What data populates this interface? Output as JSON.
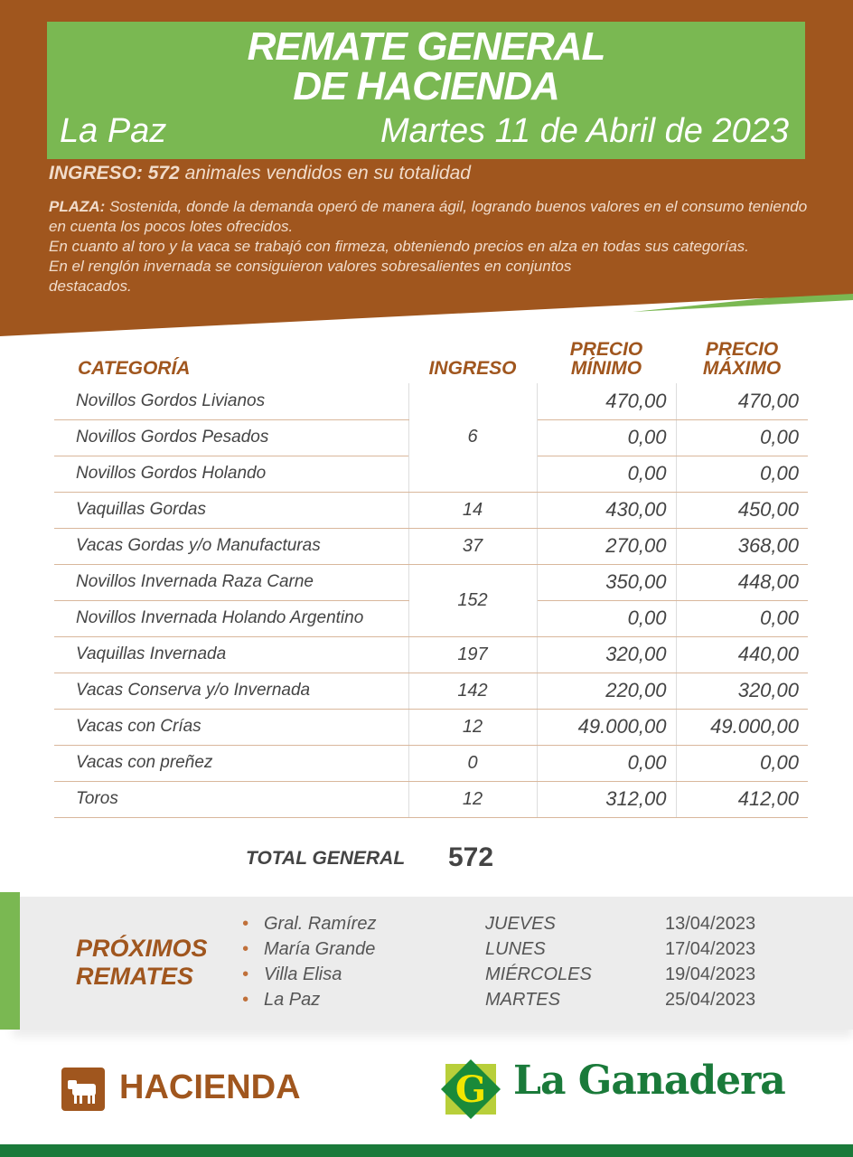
{
  "colors": {
    "brown": "#a0561e",
    "green": "#7ab852",
    "dark_green": "#1a7a3a"
  },
  "header": {
    "title_line1": "REMATE GENERAL",
    "title_line2": "DE HACIENDA",
    "place": "La Paz",
    "date": "Martes 11 de Abril de 2023"
  },
  "ingreso": {
    "label": "INGRESO:",
    "value": "572",
    "text": "animales vendidos en su totalidad"
  },
  "plaza": {
    "label": "PLAZA:",
    "lines": [
      "Sostenida, donde la demanda operó de manera ágil, logrando buenos valores en el consumo teniendo en cuenta los pocos lotes ofrecidos.",
      "En cuanto al toro y la vaca se trabajó con firmeza, obteniendo precios en alza en todas sus categorías.",
      "En el renglón invernada se consiguieron valores sobresalientes en conjuntos destacados."
    ]
  },
  "table": {
    "headers": {
      "categoria": "CATEGORÍA",
      "ingreso": "INGRESO",
      "min": "PRECIO MÍNIMO",
      "max": "PRECIO MÁXIMO"
    },
    "rows": [
      {
        "categoria": "Novillos Gordos Livianos",
        "ingreso": "6",
        "min": "470,00",
        "max": "470,00"
      },
      {
        "categoria": "Novillos Gordos Pesados",
        "min": "0,00",
        "max": "0,00"
      },
      {
        "categoria": "Novillos Gordos Holando",
        "min": "0,00",
        "max": "0,00"
      },
      {
        "categoria": "Vaquillas Gordas",
        "ingreso": "14",
        "min": "430,00",
        "max": "450,00"
      },
      {
        "categoria": "Vacas Gordas y/o Manufacturas",
        "ingreso": "37",
        "min": "270,00",
        "max": "368,00"
      },
      {
        "categoria": "Novillos Invernada Raza Carne",
        "ingreso": "152",
        "min": "350,00",
        "max": "448,00"
      },
      {
        "categoria": "Novillos Invernada Holando Argentino",
        "min": "0,00",
        "max": "0,00"
      },
      {
        "categoria": "Vaquillas Invernada",
        "ingreso": "197",
        "min": "320,00",
        "max": "440,00"
      },
      {
        "categoria": "Vacas Conserva y/o Invernada",
        "ingreso": "142",
        "min": "220,00",
        "max": "320,00"
      },
      {
        "categoria": "Vacas con Crías",
        "ingreso": "12",
        "min": "49.000,00",
        "max": "49.000,00"
      },
      {
        "categoria": "Vacas con preñez",
        "ingreso": "0",
        "min": "0,00",
        "max": "0,00"
      },
      {
        "categoria": "Toros",
        "ingreso": "12",
        "min": "312,00",
        "max": "412,00"
      }
    ],
    "total_label": "TOTAL GENERAL",
    "total_value": "572"
  },
  "proximos": {
    "title_line1": "PRÓXIMOS",
    "title_line2": "REMATES",
    "events": [
      {
        "place": "Gral. Ramírez",
        "day": "JUEVES",
        "date": "13/04/2023"
      },
      {
        "place": "María Grande",
        "day": "LUNES",
        "date": "17/04/2023"
      },
      {
        "place": "Villa Elisa",
        "day": "MIÉRCOLES",
        "date": "19/04/2023"
      },
      {
        "place": "La Paz",
        "day": "MARTES",
        "date": "25/04/2023"
      }
    ]
  },
  "footer": {
    "section": "HACIENDA",
    "section_icon": "cow-icon",
    "brand": "La Ganadera",
    "brand_logo_letter": "G"
  }
}
